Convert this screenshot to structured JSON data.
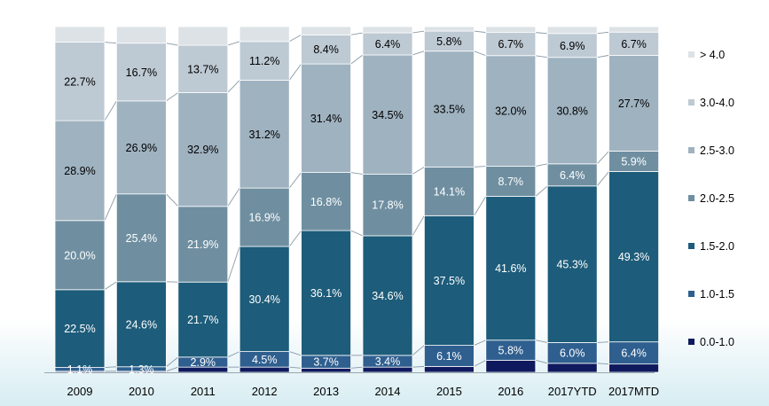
{
  "chart_data": {
    "type": "bar",
    "stacked": true,
    "normalized_percent": true,
    "categories": [
      "2009",
      "2010",
      "2011",
      "2012",
      "2013",
      "2014",
      "2015",
      "2016",
      "2017YTD",
      "2017MTD"
    ],
    "series": [
      {
        "name": "0.0-1.0",
        "color": "#0f1a5e",
        "values": [
          0.3,
          0.3,
          1.5,
          1.5,
          1.2,
          1.5,
          1.7,
          3.5,
          2.6,
          2.4
        ],
        "labels": [
          "",
          "",
          "",
          "",
          "",
          "",
          "",
          "",
          "",
          ""
        ]
      },
      {
        "name": "1.0-1.5",
        "color": "#2f5f8f",
        "values": [
          1.1,
          1.3,
          2.9,
          4.5,
          3.7,
          3.4,
          6.1,
          5.8,
          6.0,
          6.4
        ],
        "labels": [
          "1.1%",
          "1.3%",
          "2.9%",
          "4.5%",
          "3.7%",
          "3.4%",
          "6.1%",
          "5.8%",
          "6.0%",
          "6.4%"
        ]
      },
      {
        "name": "1.5-2.0",
        "color": "#1d5c7a",
        "values": [
          22.5,
          24.6,
          21.7,
          30.4,
          36.1,
          34.6,
          37.5,
          41.6,
          45.3,
          49.3
        ],
        "labels": [
          "22.5%",
          "24.6%",
          "21.7%",
          "30.4%",
          "36.1%",
          "34.6%",
          "37.5%",
          "41.6%",
          "45.3%",
          "49.3%"
        ]
      },
      {
        "name": "2.0-2.5",
        "color": "#6f8fa1",
        "values": [
          20.0,
          25.4,
          21.9,
          16.9,
          16.8,
          17.8,
          14.1,
          8.7,
          6.4,
          5.9
        ],
        "labels": [
          "20.0%",
          "25.4%",
          "21.9%",
          "16.9%",
          "16.8%",
          "17.8%",
          "14.1%",
          "8.7%",
          "6.4%",
          "5.9%"
        ]
      },
      {
        "name": "2.5-3.0",
        "color": "#9fb2c0",
        "values": [
          28.9,
          26.9,
          32.9,
          31.2,
          31.4,
          34.5,
          33.5,
          32.0,
          30.8,
          27.7
        ],
        "labels": [
          "28.9%",
          "26.9%",
          "32.9%",
          "31.2%",
          "31.4%",
          "34.5%",
          "33.5%",
          "32.0%",
          "30.8%",
          "27.7%"
        ]
      },
      {
        "name": "3.0-4.0",
        "color": "#bdc9d3",
        "values": [
          22.7,
          16.7,
          13.7,
          11.2,
          8.4,
          6.4,
          5.8,
          6.7,
          6.9,
          6.7
        ],
        "labels": [
          "22.7%",
          "16.7%",
          "13.7%",
          "11.2%",
          "8.4%",
          "6.4%",
          "5.8%",
          "6.7%",
          "6.9%",
          "6.7%"
        ]
      },
      {
        "name": "> 4.0",
        "color": "#dde2e6",
        "values": [
          4.5,
          4.8,
          5.4,
          4.3,
          2.4,
          1.8,
          1.3,
          1.7,
          2.0,
          1.6
        ],
        "labels": [
          "",
          "",
          "",
          "",
          "",
          "",
          "",
          "",
          "",
          ""
        ]
      }
    ],
    "label_colors": {
      "0.0-1.0": "#ffffff",
      "1.0-1.5": "#ffffff",
      "1.5-2.0": "#ffffff",
      "2.0-2.5": "#ffffff",
      "2.5-3.0": "#000000",
      "3.0-4.0": "#000000",
      "> 4.0": "#000000"
    },
    "legend_order": [
      "> 4.0",
      "3.0-4.0",
      "2.5-3.0",
      "2.0-2.5",
      "1.5-2.0",
      "1.0-1.5",
      "0.0-1.0"
    ],
    "legend_position": "right",
    "connector_lines": true,
    "grid": false,
    "ylim": [
      0,
      100
    ],
    "title": "",
    "xlabel": "",
    "ylabel": ""
  }
}
